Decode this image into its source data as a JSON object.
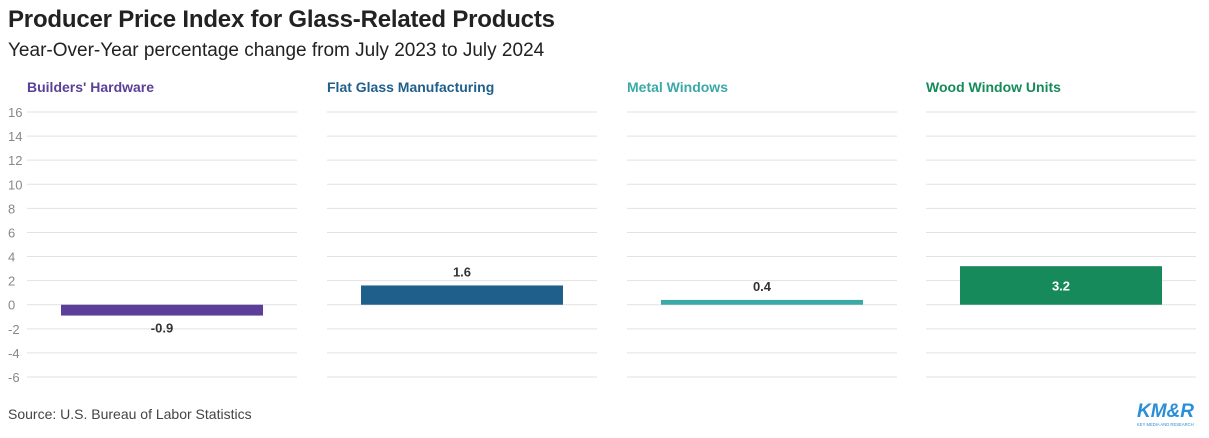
{
  "header": {
    "title": "Producer Price Index for Glass-Related Products",
    "subtitle": "Year-Over-Year percentage change from July 2023 to July 2024"
  },
  "footer": {
    "source": "Source: U.S. Bureau of Labor Statistics",
    "logo_text": "KM&R",
    "logo_subtext": "KEY MEDIA AND RESEARCH"
  },
  "colors": {
    "builders_hardware": "#5b3f99",
    "flat_glass": "#1f5f8b",
    "metal_windows": "#3aa9a7",
    "wood_window_units": "#168a5a",
    "logo": "#2a8fd6"
  },
  "chart_data": {
    "type": "bar",
    "title": "Producer Price Index for Glass-Related Products",
    "subtitle": "Year-Over-Year percentage change from July 2023 to July 2024",
    "ylim": [
      -6,
      16
    ],
    "yticks": [
      "16",
      "14",
      "12",
      "10",
      "8",
      "6",
      "4",
      "2",
      "0",
      "-2",
      "-4",
      "-6"
    ],
    "panels": [
      {
        "category": "Builders' Hardware",
        "value": -0.9,
        "label": "-0.9",
        "color": "#5b3f99"
      },
      {
        "category": "Flat Glass Manufacturing",
        "value": 1.6,
        "label": "1.6",
        "color": "#1f5f8b"
      },
      {
        "category": "Metal Windows",
        "value": 0.4,
        "label": "0.4",
        "color": "#3aa9a7"
      },
      {
        "category": "Wood Window Units",
        "value": 3.2,
        "label": "3.2",
        "color": "#168a5a"
      }
    ]
  }
}
